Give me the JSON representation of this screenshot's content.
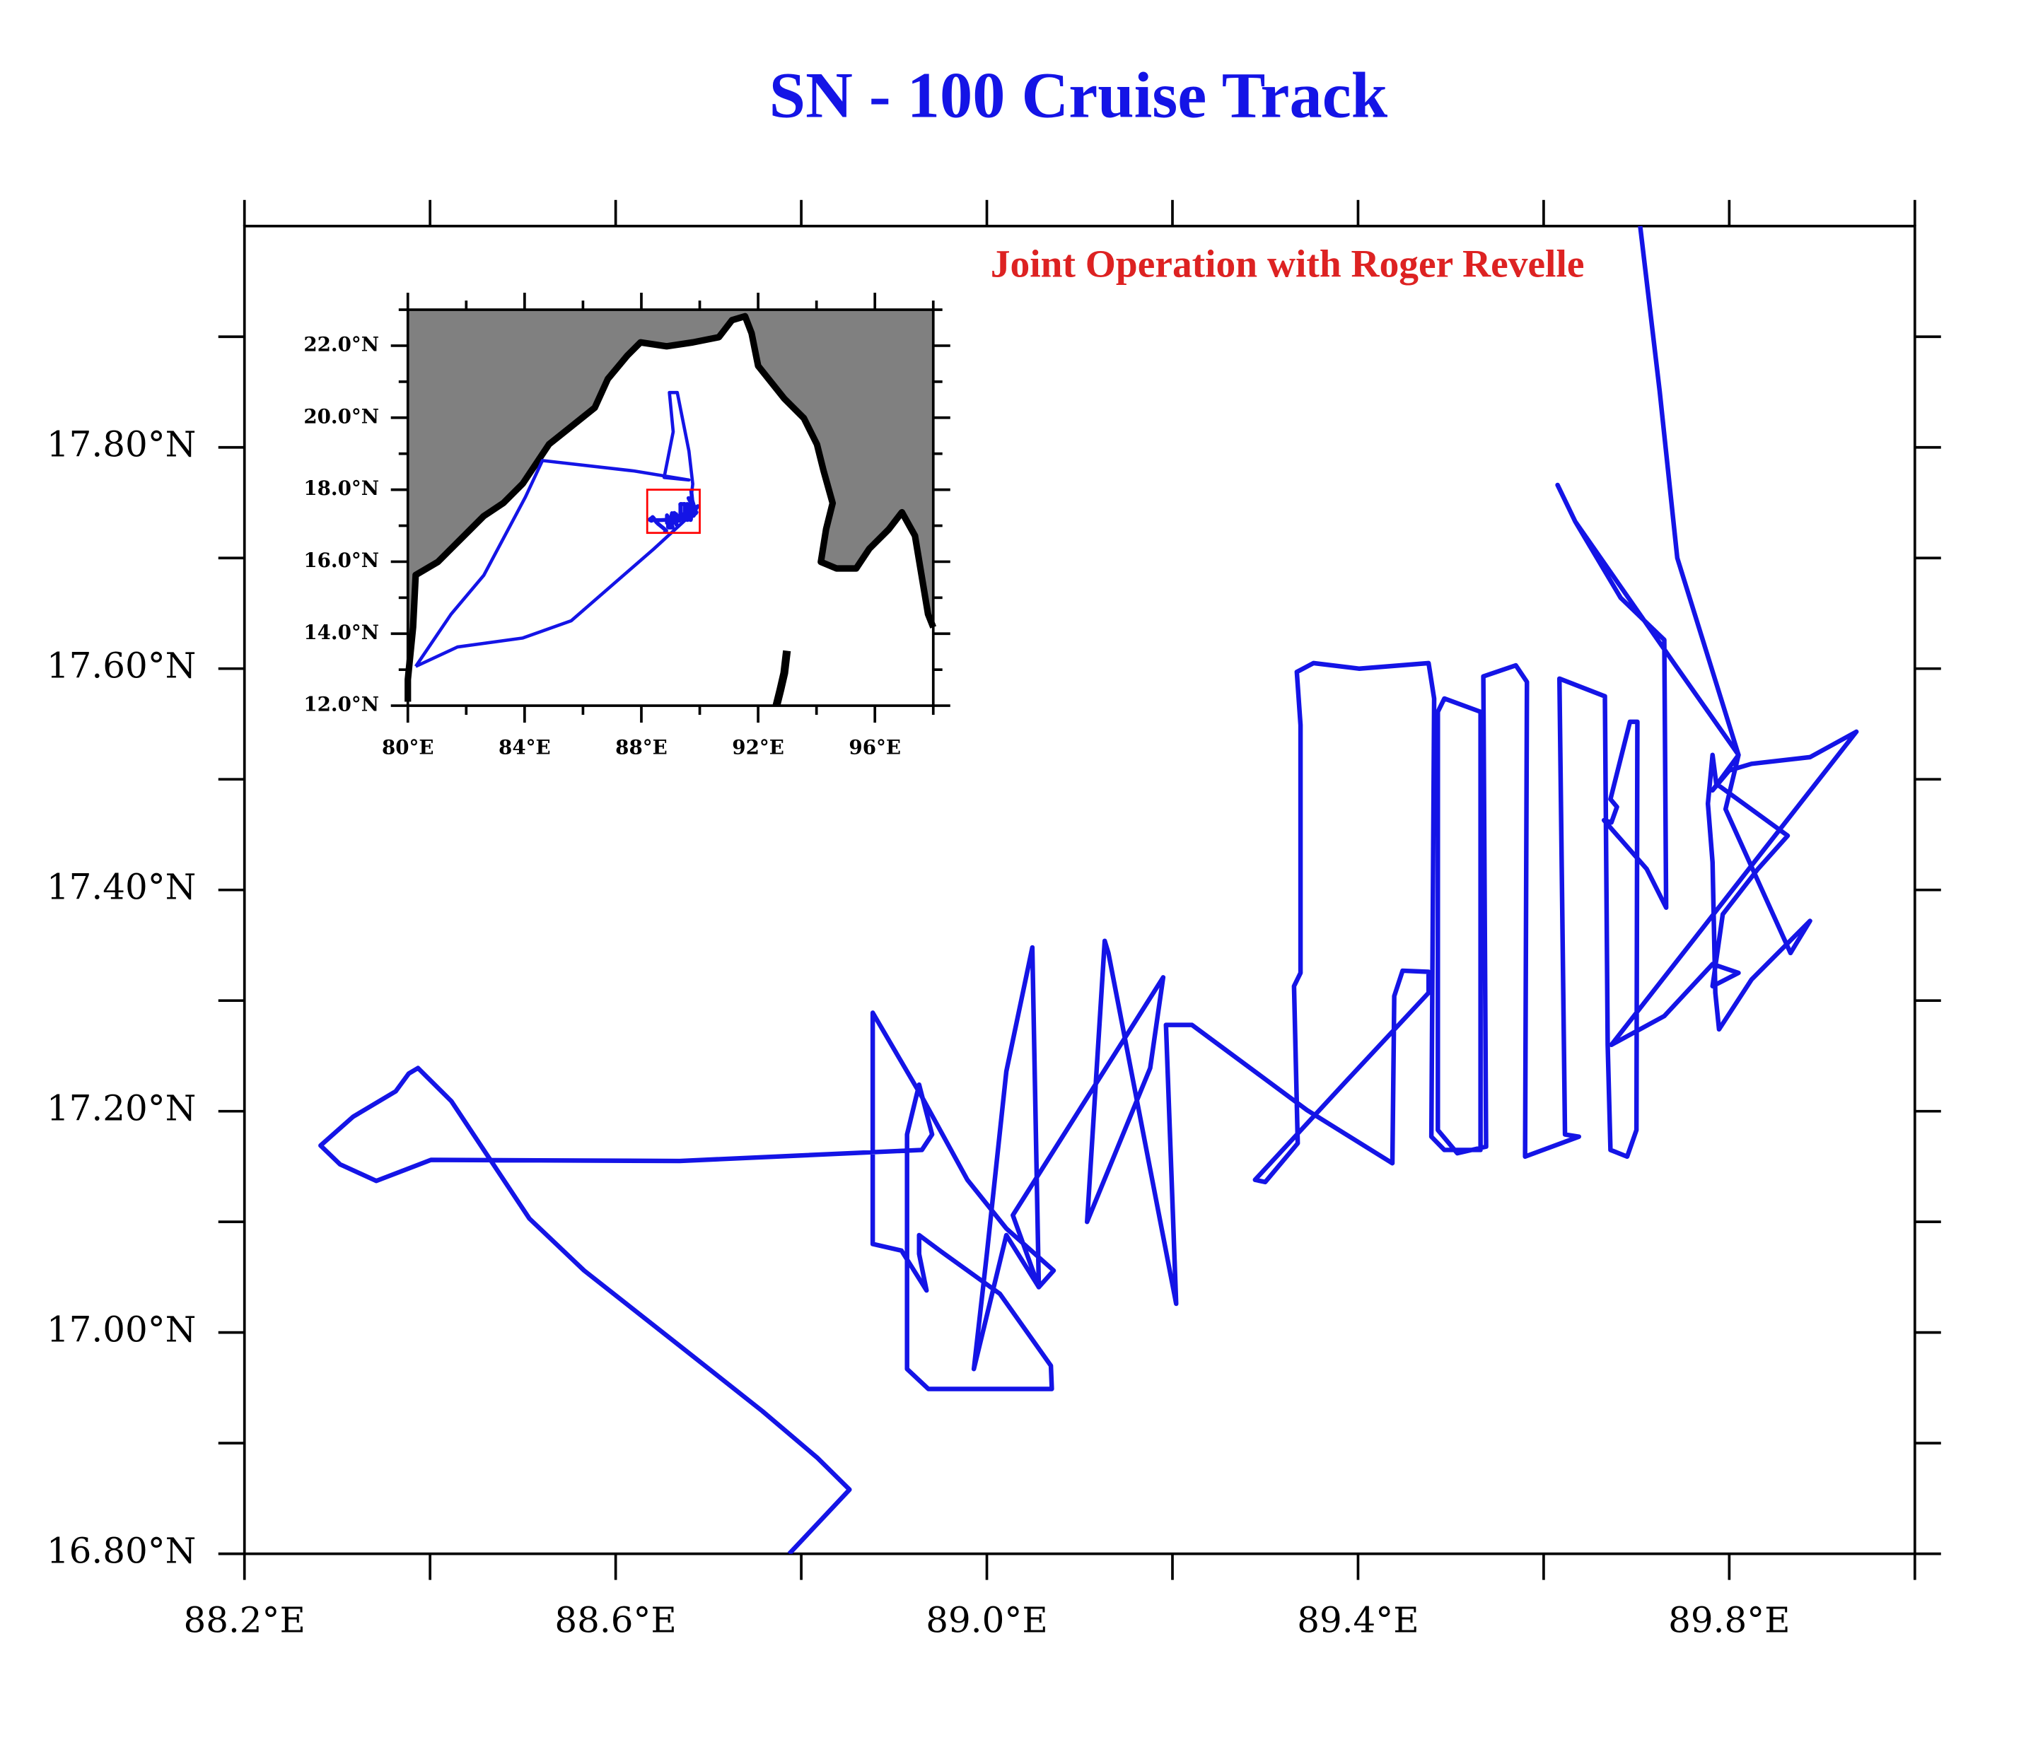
{
  "chart_data": {
    "type": "line",
    "title": "SN - 100 Cruise Track",
    "annotation": "Joint Operation with Roger Revelle",
    "color": "#1414e6",
    "xlim": [
      88.2,
      90.0
    ],
    "ylim": [
      16.8,
      18.0
    ],
    "xticks": [
      {
        "value": 88.2,
        "label": "88.2°E"
      },
      {
        "value": 88.6,
        "label": "88.6°E"
      },
      {
        "value": 89.0,
        "label": "89.0°E"
      },
      {
        "value": 89.4,
        "label": "89.4°E"
      },
      {
        "value": 89.8,
        "label": "89.8°E"
      }
    ],
    "xminor_ticks": [
      88.4,
      88.8,
      89.2,
      89.6,
      90.0
    ],
    "yticks": [
      {
        "value": 16.8,
        "label": "16.80°N"
      },
      {
        "value": 17.0,
        "label": "17.00°N"
      },
      {
        "value": 17.2,
        "label": "17.20°N"
      },
      {
        "value": 17.4,
        "label": "17.40°N"
      },
      {
        "value": 17.6,
        "label": "17.60°N"
      },
      {
        "value": 17.8,
        "label": "17.80°N"
      }
    ],
    "yminor_ticks": [
      16.9,
      17.1,
      17.3,
      17.5,
      17.7,
      17.9
    ],
    "x": [
      88.787,
      88.852,
      88.817,
      88.758,
      88.669,
      88.566,
      88.507,
      88.423,
      88.387,
      88.377,
      88.363,
      88.317,
      88.282,
      88.303,
      88.342,
      88.401,
      88.669,
      88.93,
      88.941,
      88.927,
      88.914,
      88.914,
      88.937,
      89.07,
      89.069,
      89.014,
      88.951,
      88.927,
      88.927,
      88.935,
      88.908,
      88.877,
      88.877,
      88.93,
      88.979,
      89.021,
      89.072,
      89.056,
      89.021,
      88.986,
      89.0,
      89.021,
      89.049,
      89.056,
      89.028,
      89.19,
      89.176,
      89.108,
      89.127,
      89.131,
      89.204,
      89.193,
      89.221,
      89.345,
      89.437,
      89.439,
      89.448,
      89.476,
      89.476,
      89.387,
      89.289,
      89.3,
      89.335,
      89.331,
      89.338,
      89.338,
      89.334,
      89.352,
      89.401,
      89.476,
      89.482,
      89.479,
      89.493,
      89.532,
      89.532,
      89.493,
      89.486,
      89.486,
      89.507,
      89.538,
      89.535,
      89.57,
      89.582,
      89.58,
      89.638,
      89.623,
      89.617,
      89.666,
      89.669,
      89.672,
      89.69,
      89.7,
      89.701,
      89.693,
      89.672,
      89.679,
      89.673,
      89.665,
      89.711,
      89.732,
      89.73,
      89.683,
      89.634,
      89.615,
      89.634,
      89.742,
      89.81,
      89.782,
      89.8,
      89.824,
      89.887,
      89.937,
      89.838,
      89.673,
      89.73,
      89.782,
      89.81,
      89.782,
      89.793,
      89.831,
      89.863,
      89.786,
      89.782,
      89.777,
      89.782,
      89.785,
      89.789,
      89.824,
      89.887,
      89.866,
      89.796,
      89.81,
      89.744,
      89.725,
      89.704
    ],
    "values": [
      16.8,
      16.858,
      16.887,
      16.929,
      16.988,
      17.056,
      17.103,
      17.209,
      17.239,
      17.234,
      17.218,
      17.195,
      17.169,
      17.152,
      17.137,
      17.156,
      17.155,
      17.165,
      17.179,
      17.224,
      17.179,
      16.967,
      16.949,
      16.949,
      16.97,
      17.035,
      17.073,
      17.088,
      17.071,
      17.038,
      17.074,
      17.08,
      17.289,
      17.213,
      17.138,
      17.094,
      17.056,
      17.041,
      17.088,
      16.967,
      17.071,
      17.236,
      17.348,
      17.041,
      17.106,
      17.321,
      17.239,
      17.1,
      17.354,
      17.343,
      17.026,
      17.278,
      17.278,
      17.201,
      17.153,
      17.304,
      17.327,
      17.326,
      17.307,
      17.227,
      17.138,
      17.136,
      17.171,
      17.313,
      17.325,
      17.549,
      17.597,
      17.605,
      17.6,
      17.605,
      17.573,
      17.177,
      17.165,
      17.165,
      17.561,
      17.573,
      17.561,
      17.183,
      17.162,
      17.168,
      17.593,
      17.603,
      17.588,
      17.159,
      17.177,
      17.179,
      17.591,
      17.575,
      17.26,
      17.165,
      17.159,
      17.183,
      17.552,
      17.552,
      17.482,
      17.475,
      17.461,
      17.463,
      17.419,
      17.384,
      17.626,
      17.664,
      17.733,
      17.766,
      17.733,
      17.603,
      17.522,
      17.49,
      17.508,
      17.514,
      17.52,
      17.543,
      17.437,
      17.26,
      17.286,
      17.333,
      17.325,
      17.313,
      17.378,
      17.419,
      17.449,
      17.496,
      17.522,
      17.478,
      17.425,
      17.307,
      17.274,
      17.319,
      17.372,
      17.343,
      17.473,
      17.522,
      17.7,
      17.851,
      18.0
    ],
    "inset": {
      "xlim": [
        80,
        98
      ],
      "ylim": [
        12,
        23
      ],
      "xticks": [
        {
          "value": 80,
          "label": "80°E"
        },
        {
          "value": 84,
          "label": "84°E"
        },
        {
          "value": 88,
          "label": "88°E"
        },
        {
          "value": 92,
          "label": "92°E"
        },
        {
          "value": 96,
          "label": "96°E"
        }
      ],
      "xminor_ticks": [
        82,
        86,
        90,
        94,
        98
      ],
      "yticks": [
        {
          "value": 12,
          "label": "12.0°N"
        },
        {
          "value": 14,
          "label": "14.0°N"
        },
        {
          "value": 16,
          "label": "16.0°N"
        },
        {
          "value": 18,
          "label": "18.0°N"
        },
        {
          "value": 20,
          "label": "20.0°N"
        },
        {
          "value": 22,
          "label": "22.0°N"
        }
      ],
      "yminor_ticks": [
        13,
        15,
        17,
        19,
        21,
        23
      ],
      "box_color": "#ff0000",
      "land_color": "#808080",
      "x": [
        80.27,
        81.7,
        83.94,
        85.6,
        88.42,
        89.63,
        89.76,
        89.63,
        89.23,
        88.96,
        89.09,
        88.78,
        89.63,
        87.75,
        84.61,
        84.03,
        82.6,
        81.48,
        80.27
      ],
      "values": [
        13.09,
        13.63,
        13.88,
        14.36,
        16.35,
        17.25,
        18.16,
        19.07,
        20.7,
        20.7,
        19.61,
        18.34,
        18.27,
        18.52,
        18.81,
        17.8,
        15.62,
        14.54,
        13.09
      ]
    }
  }
}
